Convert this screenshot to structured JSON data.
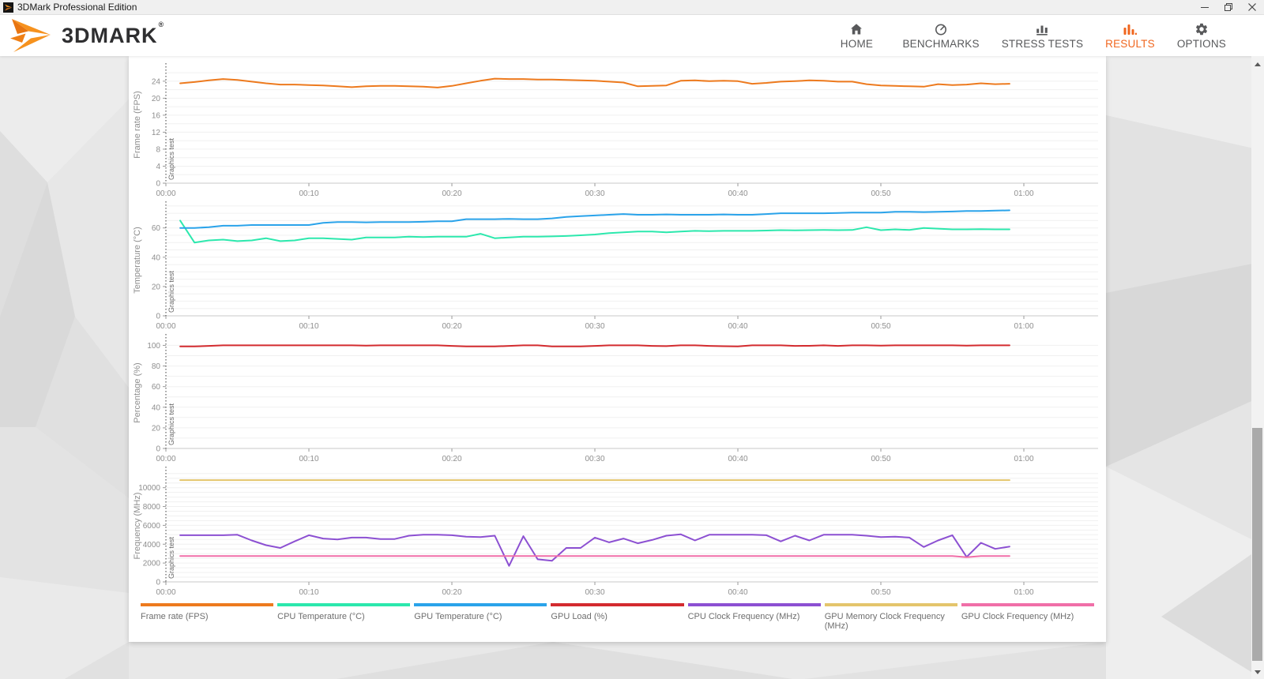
{
  "window": {
    "title": "3DMark Professional Edition"
  },
  "titlebar": {
    "minimize": "minimize",
    "restore": "restore",
    "close": "close"
  },
  "brand": {
    "name": "3DMARK",
    "registered": "®"
  },
  "nav": {
    "active_color": "#f0661e",
    "inactive_color": "#58595b",
    "items": [
      {
        "id": "home",
        "label": "HOME",
        "icon": "home-icon",
        "active": false
      },
      {
        "id": "benchmarks",
        "label": "BENCHMARKS",
        "icon": "benchmarks-icon",
        "active": false
      },
      {
        "id": "stress-tests",
        "label": "STRESS TESTS",
        "icon": "stress-tests-icon",
        "active": false
      },
      {
        "id": "results",
        "label": "RESULTS",
        "icon": "results-icon",
        "active": true
      },
      {
        "id": "options",
        "label": "OPTIONS",
        "icon": "options-icon",
        "active": false
      }
    ]
  },
  "chart_data": {
    "type": "line",
    "x_unit": "time",
    "x_start_minute": 1,
    "x_interval_minutes": 1,
    "xticks": [
      "00:00",
      "00:10",
      "00:20",
      "00:30",
      "00:40",
      "00:50",
      "01:00"
    ],
    "annotation": "Graphics test",
    "grid": true,
    "charts": [
      {
        "id": "fps",
        "ylabel": "Frame rate (FPS)",
        "yticks": [
          0,
          4,
          8,
          12,
          16,
          20,
          24
        ],
        "ymax": 27.5,
        "series": [
          {
            "name": "Frame rate (FPS)",
            "color": "#ed7a1e",
            "values": [
              23.5,
              23.8,
              24.2,
              24.5,
              24.3,
              23.9,
              23.5,
              23.2,
              23.2,
              23.1,
              23.0,
              22.8,
              22.6,
              22.8,
              22.9,
              22.9,
              22.8,
              22.7,
              22.5,
              22.9,
              23.5,
              24.1,
              24.6,
              24.5,
              24.5,
              24.4,
              24.4,
              24.3,
              24.2,
              24.1,
              23.9,
              23.7,
              22.8,
              22.9,
              23.0,
              24.1,
              24.2,
              24.0,
              24.1,
              24.0,
              23.4,
              23.6,
              23.9,
              24.0,
              24.2,
              24.1,
              23.9,
              23.9,
              23.3,
              23.0,
              22.9,
              22.8,
              22.7,
              23.3,
              23.1,
              23.2,
              23.5,
              23.3,
              23.4
            ]
          }
        ]
      },
      {
        "id": "temperature",
        "ylabel": "Temperature (°C)",
        "yticks": [
          0,
          20,
          40,
          60
        ],
        "ymax": 76,
        "series": [
          {
            "name": "CPU Temperature (°C)",
            "color": "#2ce8ad",
            "values": [
              65,
              50,
              51.5,
              52,
              51,
              51.5,
              53,
              51,
              51.5,
              53,
              53,
              52.5,
              52,
              53.5,
              53.5,
              53.5,
              54,
              53.8,
              54,
              54,
              54,
              56,
              53,
              53.5,
              54,
              54,
              54.2,
              54.5,
              55,
              55.5,
              56.5,
              57,
              57.5,
              57.5,
              57,
              57.5,
              58,
              57.8,
              58,
              58,
              58,
              58.2,
              58.5,
              58.3,
              58.5,
              58.6,
              58.5,
              58.6,
              60.5,
              58.5,
              59,
              58.6,
              60,
              59.5,
              59,
              59,
              59.2,
              59,
              59
            ]
          },
          {
            "name": "GPU Temperature (°C)",
            "color": "#2aa3ea",
            "values": [
              60,
              60,
              60.5,
              61.5,
              61.5,
              62,
              62,
              62,
              62,
              62,
              63.5,
              64,
              64,
              63.8,
              64,
              64,
              64,
              64.2,
              64.5,
              64.5,
              66,
              66,
              66,
              66.2,
              66,
              66,
              66.5,
              67.5,
              68,
              68.5,
              69,
              69.5,
              69,
              69,
              69.2,
              69,
              69,
              69,
              69.2,
              69,
              69,
              69.5,
              70,
              70,
              70,
              70,
              70.2,
              70.5,
              70.5,
              70.5,
              71,
              71,
              70.8,
              71,
              71.2,
              71.5,
              71.5,
              71.8,
              72
            ]
          }
        ]
      },
      {
        "id": "percentage",
        "ylabel": "Percentage (%)",
        "yticks": [
          0,
          20,
          40,
          60,
          80,
          100
        ],
        "ymax": 108,
        "series": [
          {
            "name": "GPU Load (%)",
            "color": "#d32b2f",
            "values": [
              99,
              99,
              99.5,
              100,
              100,
              100,
              100,
              100,
              100,
              100,
              100,
              100,
              100,
              99.8,
              100,
              100,
              100,
              100,
              100,
              99.5,
              99,
              99,
              99,
              99.5,
              100,
              100,
              99,
              99,
              99,
              99.5,
              100,
              100,
              100,
              99.5,
              99.3,
              100,
              100,
              99.5,
              99.2,
              99,
              100,
              100,
              100,
              99.5,
              99.6,
              100,
              99.5,
              100,
              100,
              99.8,
              100,
              100,
              100,
              100,
              100,
              99.8,
              100,
              100,
              100
            ]
          }
        ]
      },
      {
        "id": "frequency",
        "ylabel": "Frequency (MHz)",
        "yticks": [
          0,
          2000,
          4000,
          6000,
          8000,
          10000
        ],
        "ymax": 11900,
        "series": [
          {
            "name": "GPU Memory Clock Frequency (MHz)",
            "color": "#e4c56c",
            "values": [
              10800,
              10800,
              10800,
              10800,
              10800,
              10800,
              10800,
              10800,
              10800,
              10800,
              10800,
              10800,
              10800,
              10800,
              10800,
              10800,
              10800,
              10800,
              10800,
              10800,
              10800,
              10800,
              10800,
              10800,
              10800,
              10800,
              10800,
              10800,
              10800,
              10800,
              10800,
              10800,
              10800,
              10800,
              10800,
              10800,
              10800,
              10800,
              10800,
              10800,
              10800,
              10800,
              10800,
              10800,
              10800,
              10800,
              10800,
              10800,
              10800,
              10800,
              10800,
              10800,
              10800,
              10800,
              10800,
              10800,
              10800,
              10800,
              10800
            ]
          },
          {
            "name": "CPU Clock Frequency (MHz)",
            "color": "#8c50d2",
            "values": [
              4950,
              4950,
              4950,
              4950,
              5000,
              4400,
              3900,
              3600,
              4300,
              4950,
              4600,
              4500,
              4700,
              4700,
              4550,
              4550,
              4900,
              5000,
              5000,
              4950,
              4800,
              4750,
              4900,
              1700,
              4850,
              2400,
              2250,
              3600,
              3600,
              4700,
              4200,
              4600,
              4100,
              4450,
              4900,
              5050,
              4400,
              5000,
              5000,
              5000,
              5000,
              4950,
              4300,
              4900,
              4400,
              5000,
              5000,
              5000,
              4900,
              4750,
              4800,
              4700,
              3700,
              4400,
              4950,
              2650,
              4150,
              3500,
              3750
            ]
          },
          {
            "name": "GPU Clock Frequency (MHz)",
            "color": "#f06fa8",
            "values": [
              2750,
              2750,
              2750,
              2750,
              2750,
              2750,
              2750,
              2750,
              2750,
              2750,
              2750,
              2750,
              2750,
              2750,
              2750,
              2750,
              2750,
              2750,
              2750,
              2750,
              2750,
              2750,
              2750,
              2750,
              2750,
              2750,
              2750,
              2750,
              2750,
              2750,
              2750,
              2750,
              2750,
              2750,
              2750,
              2750,
              2750,
              2750,
              2750,
              2750,
              2750,
              2750,
              2750,
              2750,
              2750,
              2750,
              2750,
              2750,
              2750,
              2750,
              2750,
              2750,
              2750,
              2750,
              2750,
              2620,
              2750,
              2750,
              2750
            ]
          }
        ]
      }
    ]
  },
  "legend": [
    {
      "label": "Frame rate (FPS)",
      "color": "#ed7a1e"
    },
    {
      "label": "CPU Temperature (°C)",
      "color": "#2ce8ad"
    },
    {
      "label": "GPU Temperature (°C)",
      "color": "#2aa3ea"
    },
    {
      "label": "GPU Load (%)",
      "color": "#d32b2f"
    },
    {
      "label": "CPU Clock Frequency (MHz)",
      "color": "#8c50d2"
    },
    {
      "label": "GPU Memory Clock Frequency (MHz)",
      "color": "#e4c56c"
    },
    {
      "label": "GPU Clock Frequency (MHz)",
      "color": "#f06fa8"
    }
  ]
}
